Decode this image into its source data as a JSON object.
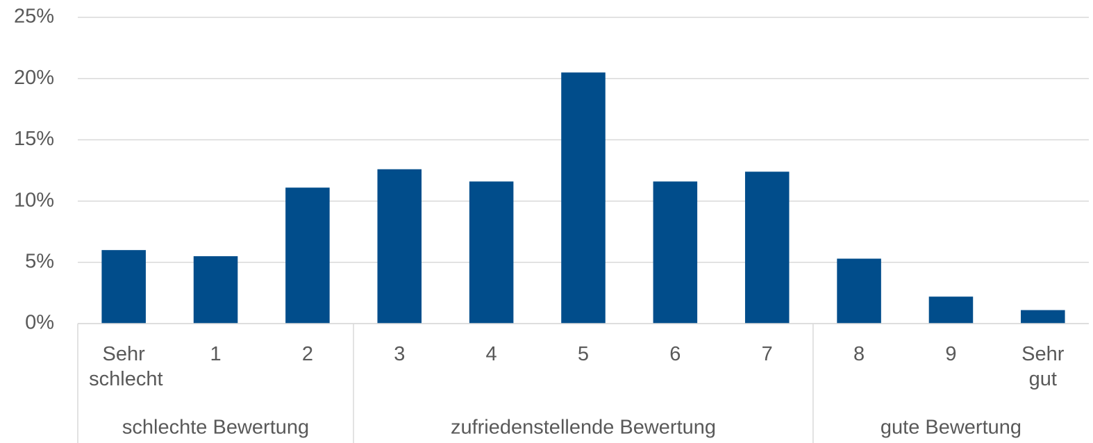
{
  "chart_data": {
    "type": "bar",
    "categories": [
      "Sehr schlecht",
      "1",
      "2",
      "3",
      "4",
      "5",
      "6",
      "7",
      "8",
      "9",
      "Sehr gut"
    ],
    "values": [
      6.0,
      5.5,
      11.1,
      12.6,
      11.6,
      20.5,
      11.6,
      12.4,
      5.3,
      2.2,
      1.1
    ],
    "color": "#014d8b",
    "groups": [
      {
        "name": "schlechte Bewertung",
        "start": 0,
        "end": 2
      },
      {
        "name": "zufriedenstellende Bewertung",
        "start": 3,
        "end": 7
      },
      {
        "name": "gute Bewertung",
        "start": 8,
        "end": 10
      }
    ],
    "ylim": [
      0,
      25
    ],
    "yticks": [
      {
        "value": 0,
        "label": "0%"
      },
      {
        "value": 5,
        "label": "5%"
      },
      {
        "value": 10,
        "label": "10%"
      },
      {
        "value": 15,
        "label": "15%"
      },
      {
        "value": 20,
        "label": "20%"
      },
      {
        "value": 25,
        "label": "25%"
      }
    ],
    "grid": true
  }
}
